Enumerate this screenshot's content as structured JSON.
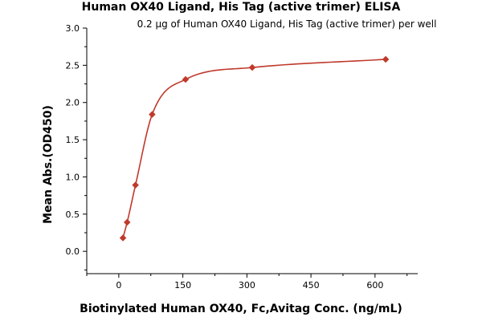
{
  "chart_data": {
    "type": "scatter",
    "title": "Human OX40 Ligand, His Tag (active trimer) ELISA",
    "subtitle": "0.2 µg of Human OX40 Ligand, His Tag (active trimer) per well",
    "xlabel": "Biotinylated Human OX40, Fc,Avitag Conc. (ng/mL)",
    "ylabel": "Mean Abs.(OD450)",
    "xlim": [
      -75,
      700
    ],
    "ylim": [
      -0.3,
      3.0
    ],
    "x_ticks": [
      0,
      150,
      300,
      450,
      600
    ],
    "y_ticks": [
      0.0,
      0.5,
      1.0,
      1.5,
      2.0,
      2.5,
      3.0
    ],
    "x_tick_labels": [
      "0",
      "150",
      "300",
      "450",
      "600"
    ],
    "y_tick_labels": [
      "0.0",
      "0.5",
      "1.0",
      "1.5",
      "2.0",
      "2.5",
      "3.0"
    ],
    "grid": false,
    "series": [
      {
        "x": [
          9.77,
          19.53,
          39.06,
          78.13,
          156.25,
          312.5,
          625
        ],
        "y": [
          0.18,
          0.39,
          0.89,
          1.84,
          2.31,
          2.47,
          2.58
        ],
        "marker": "diamond",
        "color": "#c0392b",
        "fit": "curve"
      }
    ]
  }
}
